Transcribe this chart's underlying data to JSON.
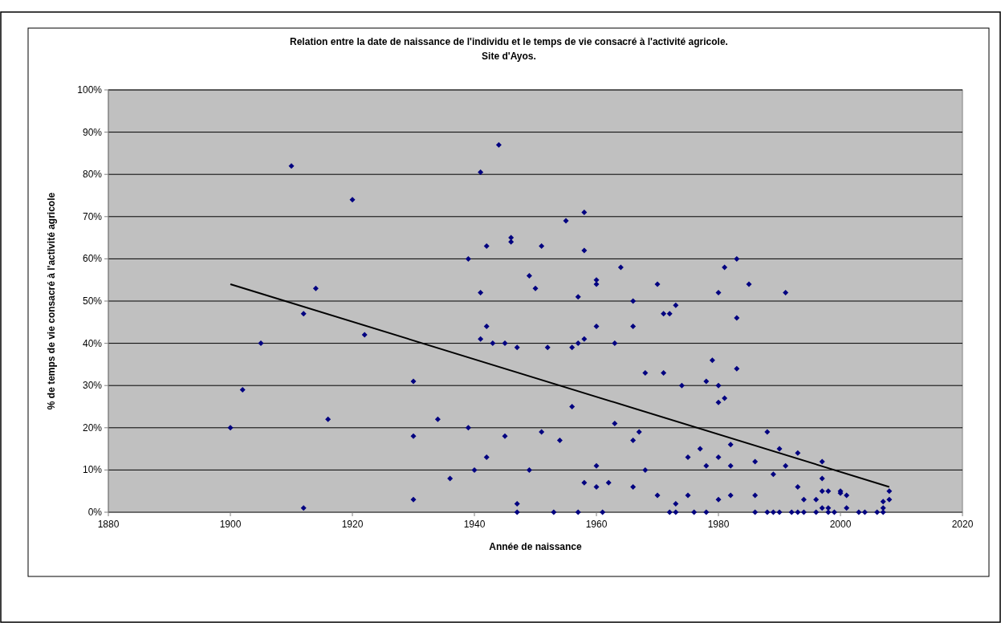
{
  "chart_data": {
    "type": "scatter",
    "title": "Relation entre la date de naissance de l'individu et le temps de vie consacré à l'activité agricole.",
    "subtitle": "Site d'Ayos.",
    "xlabel": "Année de naissance",
    "ylabel": "% de temps de vie consacré à l'activité agricole",
    "xlim": [
      1880,
      2020
    ],
    "xticks": [
      1880,
      1900,
      1920,
      1940,
      1960,
      1980,
      2000,
      2020
    ],
    "ylim": [
      0,
      100
    ],
    "yticks": [
      {
        "value": 0,
        "label": "0%"
      },
      {
        "value": 10,
        "label": "10%"
      },
      {
        "value": 20,
        "label": "20%"
      },
      {
        "value": 30,
        "label": "30%"
      },
      {
        "value": 40,
        "label": "40%"
      },
      {
        "value": 50,
        "label": "50%"
      },
      {
        "value": 60,
        "label": "60%"
      },
      {
        "value": 70,
        "label": "70%"
      },
      {
        "value": 80,
        "label": "80%"
      },
      {
        "value": 90,
        "label": "90%"
      },
      {
        "value": 100,
        "label": "100%"
      }
    ],
    "grid": "y",
    "marker": "diamond",
    "series": [
      {
        "color": "#000080",
        "x": [
          1900,
          1902,
          1905,
          1910,
          1912,
          1912,
          1914,
          1916,
          1920,
          1922,
          1930,
          1930,
          1930,
          1934,
          1936,
          1939,
          1939,
          1940,
          1941,
          1941,
          1941,
          1942,
          1942,
          1942,
          1943,
          1944,
          1945,
          1945,
          1946,
          1946,
          1947,
          1947,
          1947,
          1949,
          1949,
          1950,
          1951,
          1951,
          1952,
          1953,
          1954,
          1955,
          1956,
          1956,
          1957,
          1957,
          1957,
          1958,
          1958,
          1958,
          1958,
          1960,
          1960,
          1960,
          1960,
          1960,
          1961,
          1962,
          1963,
          1963,
          1964,
          1966,
          1966,
          1966,
          1966,
          1967,
          1968,
          1968,
          1970,
          1970,
          1971,
          1971,
          1972,
          1972,
          1973,
          1973,
          1973,
          1974,
          1975,
          1975,
          1976,
          1977,
          1978,
          1978,
          1978,
          1979,
          1980,
          1980,
          1980,
          1980,
          1980,
          1981,
          1981,
          1982,
          1982,
          1982,
          1983,
          1983,
          1983,
          1985,
          1986,
          1986,
          1986,
          1988,
          1988,
          1989,
          1989,
          1990,
          1990,
          1991,
          1991,
          1992,
          1993,
          1993,
          1993,
          1994,
          1994,
          1996,
          1996,
          1997,
          1997,
          1997,
          1997,
          1998,
          1998,
          1998,
          1999,
          2000,
          2000,
          2001,
          2001,
          2003,
          2004,
          2006,
          2007,
          2007,
          2007,
          2008,
          2008
        ],
        "values": [
          20,
          29,
          40,
          82,
          47,
          1,
          53,
          22,
          74,
          42,
          31,
          18,
          3,
          22,
          8,
          60,
          20,
          10,
          80.5,
          52,
          41,
          63,
          44,
          13,
          40,
          87,
          40,
          18,
          65,
          64,
          39,
          2,
          0,
          56,
          10,
          53,
          63,
          19,
          39,
          0,
          17,
          69,
          39,
          25,
          51,
          40,
          0,
          71,
          62,
          41,
          7,
          55,
          54,
          44,
          11,
          6,
          0,
          7,
          40,
          21,
          58,
          50,
          44,
          17,
          6,
          19,
          33,
          10,
          54,
          4,
          47,
          33,
          47,
          0,
          49,
          2,
          0,
          30,
          13,
          4,
          0,
          15,
          31,
          11,
          0,
          36,
          52,
          30,
          26,
          13,
          3,
          58,
          27,
          16,
          11,
          4,
          60,
          46,
          34,
          54,
          12,
          4,
          0,
          19,
          0,
          9,
          0,
          15,
          0,
          52,
          11,
          0,
          14,
          6,
          0,
          3,
          0,
          3,
          0,
          12,
          8,
          5,
          1,
          5,
          1,
          0,
          0,
          5,
          4.5,
          4,
          1,
          0,
          0,
          0,
          2.5,
          1,
          0,
          5,
          3
        ]
      },
      {
        "type": "line",
        "color": "#000000",
        "marker": "none",
        "x": [
          1900,
          2008
        ],
        "values": [
          54,
          6
        ]
      }
    ]
  }
}
